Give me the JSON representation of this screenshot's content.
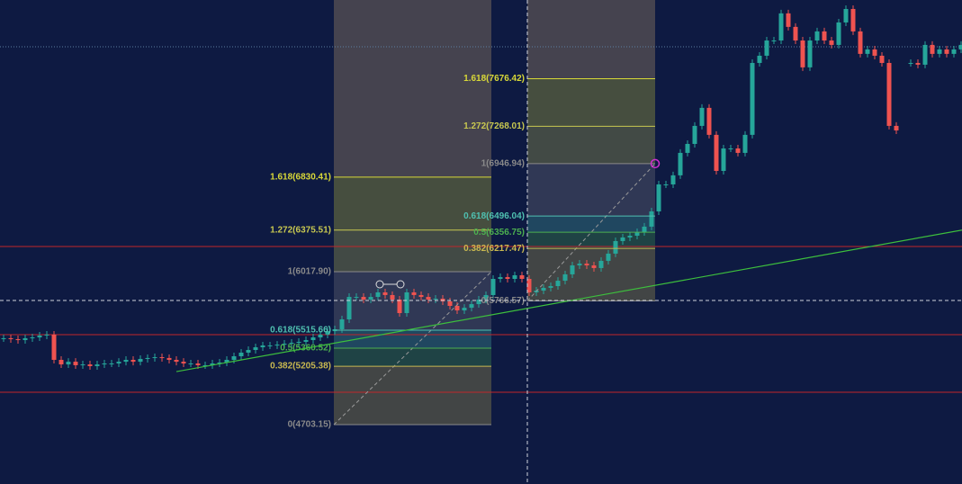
{
  "chart_data": {
    "type": "candlestick",
    "ylim": [
      4193,
      8353
    ],
    "up_color": "#26a69a",
    "down_color": "#ef5350",
    "values": [
      5446,
      5438,
      5430,
      5446,
      5453,
      5469,
      5477,
      5260,
      5221,
      5244,
      5214,
      5221,
      5206,
      5221,
      5229,
      5229,
      5244,
      5260,
      5244,
      5268,
      5276,
      5283,
      5276,
      5260,
      5244,
      5229,
      5229,
      5214,
      5214,
      5229,
      5237,
      5260,
      5291,
      5322,
      5345,
      5368,
      5384,
      5384,
      5391,
      5399,
      5407,
      5415,
      5430,
      5453,
      5477,
      5507,
      5523,
      5608,
      5801,
      5801,
      5778,
      5801,
      5840,
      5817,
      5778,
      5662,
      5840,
      5817,
      5801,
      5778,
      5786,
      5763,
      5724,
      5685,
      5708,
      5739,
      5778,
      5817,
      5956,
      5971,
      5956,
      5987,
      5956,
      5840,
      5855,
      5879,
      5894,
      5940,
      5995,
      6072,
      6087,
      6072,
      6049,
      6111,
      6173,
      6281,
      6312,
      6327,
      6358,
      6405,
      6536,
      6768,
      6768,
      6846,
      7039,
      7116,
      7271,
      7426,
      7194,
      6884,
      7077,
      7077,
      7039,
      7194,
      7812,
      7874,
      8005,
      8005,
      8238,
      8122,
      8005,
      7774,
      8005,
      8083,
      8005,
      7967,
      8160,
      8276,
      8083,
      7890,
      7928,
      7874,
      7812,
      7271,
      7232,
      null,
      7812,
      7797,
      7967,
      7890,
      7928,
      7890,
      7928,
      7967
    ],
    "hlines": [
      6234,
      5477,
      4982
    ],
    "hline_color": "#c0262a",
    "crosshair_price": 5770,
    "dotted_price": 7951,
    "trendline": {
      "from": [
        24,
        5159
      ],
      "to": [
        133.6,
        6381
      ],
      "color": "#3dbf3d"
    },
    "fibs": [
      {
        "levels": [
          {
            "value": 6830.41,
            "label": "1.618(6830.41)",
            "color": "#d8d838"
          },
          {
            "value": 6375.51,
            "label": "1.272(6375.51)",
            "color": "#c8c850"
          },
          {
            "value": 6017.9,
            "label": "1(6017.90)",
            "color": "#8a8a8a"
          },
          {
            "value": 5515.66,
            "label": "0.618(5515.66)",
            "color": "#4fc0b0"
          },
          {
            "value": 5360.52,
            "label": "0.5(5360.52)",
            "color": "#4caf50"
          },
          {
            "value": 5205.38,
            "label": "0.382(5205.38)",
            "color": "#c8b850"
          },
          {
            "value": 4703.15,
            "label": "0(4703.15)",
            "color": "#8a8a8a"
          }
        ]
      },
      {
        "levels": [
          {
            "value": 7676.42,
            "label": "1.618(7676.42)",
            "color": "#d8d838"
          },
          {
            "value": 7268.01,
            "label": "1.272(7268.01)",
            "color": "#c8c850"
          },
          {
            "value": 6946.94,
            "label": "1(6946.94)",
            "color": "#8a8a8a"
          },
          {
            "value": 6496.04,
            "label": "0.618(6496.04)",
            "color": "#4fc0b0"
          },
          {
            "value": 6356.75,
            "label": "0.5(6356.75)",
            "color": "#4caf50"
          },
          {
            "value": 6217.47,
            "label": "0.382(6217.47)",
            "color": "#c8b850"
          },
          {
            "value": 5766.57,
            "label": "0(5766.57)",
            "color": "#8a8a8a"
          }
        ]
      }
    ]
  }
}
